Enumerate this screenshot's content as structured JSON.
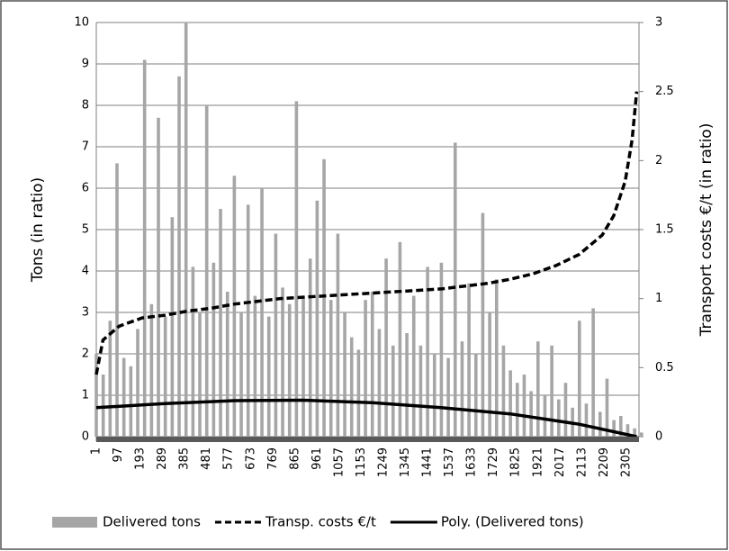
{
  "chart_data": {
    "type": "bar-line",
    "y_label": "Tons (in ratio)",
    "y2_label": "Transport costs €/t (in ratio)",
    "xlim": [
      1,
      2360
    ],
    "xticks": [
      1,
      97,
      193,
      289,
      385,
      481,
      577,
      673,
      769,
      865,
      961,
      1057,
      1153,
      1249,
      1345,
      1441,
      1537,
      1633,
      1729,
      1825,
      1921,
      2017,
      2113,
      2209,
      2305
    ],
    "ylim": [
      0,
      10
    ],
    "yticks": [
      0,
      1,
      2,
      3,
      4,
      5,
      6,
      7,
      8,
      9,
      10
    ],
    "y2lim": [
      0,
      3
    ],
    "y2ticks": [
      0,
      0.5,
      1,
      1.5,
      2,
      2.5,
      3
    ],
    "grid": true,
    "legend": "bottom",
    "series": [
      {
        "name": "Delivered tons",
        "type": "bar",
        "color": "#a6a6a6",
        "x": [
          1,
          31,
          61,
          91,
          121,
          151,
          181,
          211,
          241,
          271,
          301,
          331,
          361,
          391,
          421,
          451,
          481,
          511,
          541,
          571,
          601,
          631,
          661,
          691,
          721,
          751,
          781,
          811,
          841,
          871,
          901,
          931,
          961,
          991,
          1021,
          1051,
          1081,
          1111,
          1141,
          1171,
          1201,
          1231,
          1261,
          1291,
          1321,
          1351,
          1381,
          1411,
          1441,
          1471,
          1501,
          1531,
          1561,
          1591,
          1621,
          1651,
          1681,
          1711,
          1741,
          1771,
          1801,
          1831,
          1861,
          1891,
          1921,
          1951,
          1981,
          2011,
          2041,
          2071,
          2101,
          2131,
          2161,
          2191,
          2221,
          2251,
          2281,
          2311,
          2341,
          2371
        ],
        "values": [
          2.0,
          1.5,
          2.8,
          6.6,
          1.9,
          1.7,
          2.6,
          9.1,
          3.2,
          7.7,
          2.9,
          5.3,
          8.7,
          10.0,
          4.1,
          3.0,
          8.0,
          4.2,
          5.5,
          3.5,
          6.3,
          3.0,
          5.6,
          3.4,
          6.0,
          2.9,
          4.9,
          3.6,
          3.2,
          8.1,
          3.4,
          4.3,
          5.7,
          6.7,
          3.3,
          4.9,
          3.0,
          2.4,
          2.1,
          3.3,
          3.5,
          2.6,
          4.3,
          2.2,
          4.7,
          2.5,
          3.4,
          2.2,
          4.1,
          2.0,
          4.2,
          1.9,
          7.1,
          2.3,
          3.7,
          2.0,
          5.4,
          3.0,
          3.8,
          2.2,
          1.6,
          1.3,
          1.5,
          1.1,
          2.3,
          1.0,
          2.2,
          0.9,
          1.3,
          0.7,
          2.8,
          0.8,
          3.1,
          0.6,
          1.4,
          0.4,
          0.5,
          0.3,
          0.2,
          0.1
        ]
      },
      {
        "name": "Transp. costs €/t",
        "type": "line",
        "axis": "y2",
        "color": "#000000",
        "dash": true,
        "x": [
          1,
          30,
          100,
          200,
          300,
          400,
          500,
          600,
          700,
          800,
          900,
          1000,
          1100,
          1200,
          1300,
          1400,
          1500,
          1600,
          1700,
          1800,
          1900,
          2000,
          2100,
          2200,
          2250,
          2300,
          2330,
          2350
        ],
        "values": [
          0.45,
          0.7,
          0.8,
          0.86,
          0.88,
          0.91,
          0.93,
          0.96,
          0.98,
          1.0,
          1.01,
          1.02,
          1.03,
          1.04,
          1.05,
          1.06,
          1.07,
          1.09,
          1.11,
          1.14,
          1.18,
          1.24,
          1.32,
          1.46,
          1.6,
          1.85,
          2.15,
          2.5
        ]
      },
      {
        "name": "Poly. (Delivered tons)",
        "type": "line",
        "color": "#000000",
        "dash": false,
        "x": [
          1,
          300,
          600,
          900,
          1200,
          1500,
          1800,
          2100,
          2350
        ],
        "values": [
          0.7,
          0.8,
          0.87,
          0.88,
          0.82,
          0.7,
          0.55,
          0.3,
          0.0
        ]
      }
    ]
  }
}
